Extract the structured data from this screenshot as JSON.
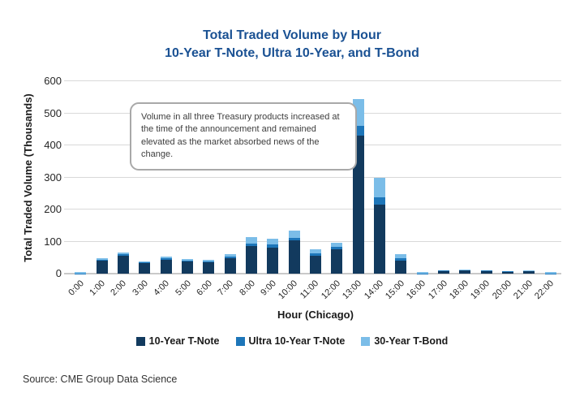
{
  "title": {
    "line1": "Total Traded Volume by Hour",
    "line2": "10-Year T-Note, Ultra 10-Year, and T-Bond"
  },
  "annotation": "Volume in all three Treasury products increased at the time of the announcement and remained elevated as the market absorbed news of the change.",
  "source": "Source: CME Group Data Science",
  "chart_data": {
    "type": "bar",
    "stacked": true,
    "title": "Total Traded Volume by Hour — 10-Year T-Note, Ultra 10-Year, and T-Bond",
    "xlabel": "Hour (Chicago)",
    "ylabel": "Total Traded Volume (Thousands)",
    "ylim": [
      0,
      600
    ],
    "yticks": [
      0,
      100,
      200,
      300,
      400,
      500,
      600
    ],
    "grid": "horizontal",
    "legend_position": "bottom",
    "categories": [
      "0:00",
      "1:00",
      "2:00",
      "3:00",
      "4:00",
      "5:00",
      "6:00",
      "7:00",
      "8:00",
      "9:00",
      "10:00",
      "11:00",
      "12:00",
      "13:00",
      "14:00",
      "15:00",
      "16:00",
      "17:00",
      "18:00",
      "19:00",
      "20:00",
      "21:00",
      "22:00"
    ],
    "series": [
      {
        "name": "10-Year T-Note",
        "color": "#123a5e",
        "values": [
          0,
          40,
          57,
          33,
          44,
          38,
          36,
          48,
          85,
          82,
          104,
          55,
          76,
          430,
          215,
          40,
          0,
          8,
          10,
          8,
          6,
          7,
          0
        ]
      },
      {
        "name": "Ultra 10-Year T-Note",
        "color": "#1d76b9",
        "values": [
          1,
          3,
          4,
          2,
          4,
          3,
          3,
          4,
          10,
          10,
          8,
          8,
          8,
          30,
          23,
          8,
          1,
          1,
          1,
          1,
          1,
          1,
          1
        ]
      },
      {
        "name": "30-Year T-Bond",
        "color": "#7bbde8",
        "values": [
          5,
          5,
          6,
          4,
          6,
          5,
          4,
          8,
          20,
          18,
          23,
          12,
          11,
          85,
          60,
          12,
          4,
          2,
          2,
          2,
          1,
          2,
          4
        ]
      }
    ]
  },
  "colors": {
    "title": "#1a5193",
    "gridline": "#d9d9d9",
    "axis_line": "#c9c9c9",
    "tick_text": "#262626",
    "annotation_border": "#a9a9a9"
  }
}
